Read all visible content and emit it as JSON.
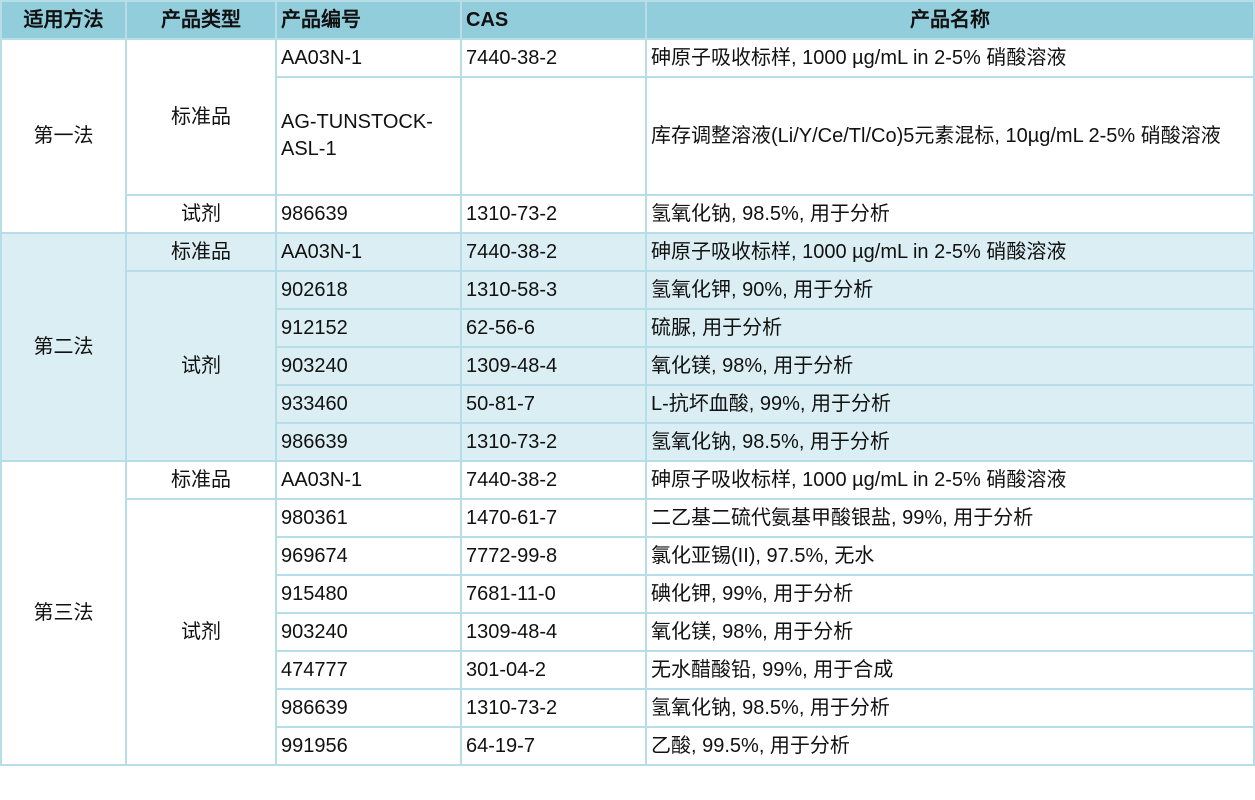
{
  "header": [
    "适用方法",
    "产品类型",
    "产品编号",
    "CAS",
    "产品名称"
  ],
  "colors": {
    "header_bg": "#92cddc",
    "alt_group_bg": "#dbeef3",
    "border": "#b7dde8"
  },
  "groups": [
    {
      "method": "第一法",
      "types": [
        {
          "type": "标准品",
          "items": [
            {
              "code": "AA03N-1",
              "cas": "7440-38-2",
              "name": "砷原子吸收标样, 1000 µg/mL in 2-5% 硝酸溶液"
            },
            {
              "code": "AG-TUNSTOCK-ASL-1",
              "cas": "",
              "name": "库存调整溶液(Li/Y/Ce/Tl/Co)5元素混标, 10µg/mL 2-5% 硝酸溶液",
              "tall": true
            }
          ]
        },
        {
          "type": "试剂",
          "items": [
            {
              "code": "986639",
              "cas": "1310-73-2",
              "name": "氢氧化钠, 98.5%, 用于分析"
            }
          ]
        }
      ]
    },
    {
      "method": "第二法",
      "types": [
        {
          "type": "标准品",
          "items": [
            {
              "code": "AA03N-1",
              "cas": "7440-38-2",
              "name": "砷原子吸收标样, 1000 µg/mL in 2-5% 硝酸溶液"
            }
          ]
        },
        {
          "type": "试剂",
          "items": [
            {
              "code": "902618",
              "cas": "1310-58-3",
              "name": "氢氧化钾, 90%, 用于分析"
            },
            {
              "code": "912152",
              "cas": "62-56-6",
              "name": "硫脲, 用于分析"
            },
            {
              "code": "903240",
              "cas": "1309-48-4",
              "name": "氧化镁, 98%, 用于分析"
            },
            {
              "code": "933460",
              "cas": "50-81-7",
              "name": "L-抗坏血酸, 99%, 用于分析"
            },
            {
              "code": "986639",
              "cas": "1310-73-2",
              "name": "氢氧化钠, 98.5%, 用于分析"
            }
          ]
        }
      ]
    },
    {
      "method": "第三法",
      "types": [
        {
          "type": "标准品",
          "items": [
            {
              "code": "AA03N-1",
              "cas": "7440-38-2",
              "name": "砷原子吸收标样, 1000 µg/mL in 2-5% 硝酸溶液"
            }
          ]
        },
        {
          "type": "试剂",
          "items": [
            {
              "code": "980361",
              "cas": "1470-61-7",
              "name": "二乙基二硫代氨基甲酸银盐, 99%, 用于分析"
            },
            {
              "code": "969674",
              "cas": "7772-99-8",
              "name": "氯化亚锡(II), 97.5%, 无水"
            },
            {
              "code": "915480",
              "cas": "7681-11-0",
              "name": "碘化钾, 99%, 用于分析"
            },
            {
              "code": "903240",
              "cas": "1309-48-4",
              "name": "氧化镁, 98%, 用于分析"
            },
            {
              "code": "474777",
              "cas": "301-04-2",
              "name": "无水醋酸铅, 99%, 用于合成"
            },
            {
              "code": "986639",
              "cas": "1310-73-2",
              "name": "氢氧化钠, 98.5%, 用于分析"
            },
            {
              "code": "991956",
              "cas": "64-19-7",
              "name": "乙酸, 99.5%, 用于分析"
            }
          ]
        }
      ]
    }
  ]
}
